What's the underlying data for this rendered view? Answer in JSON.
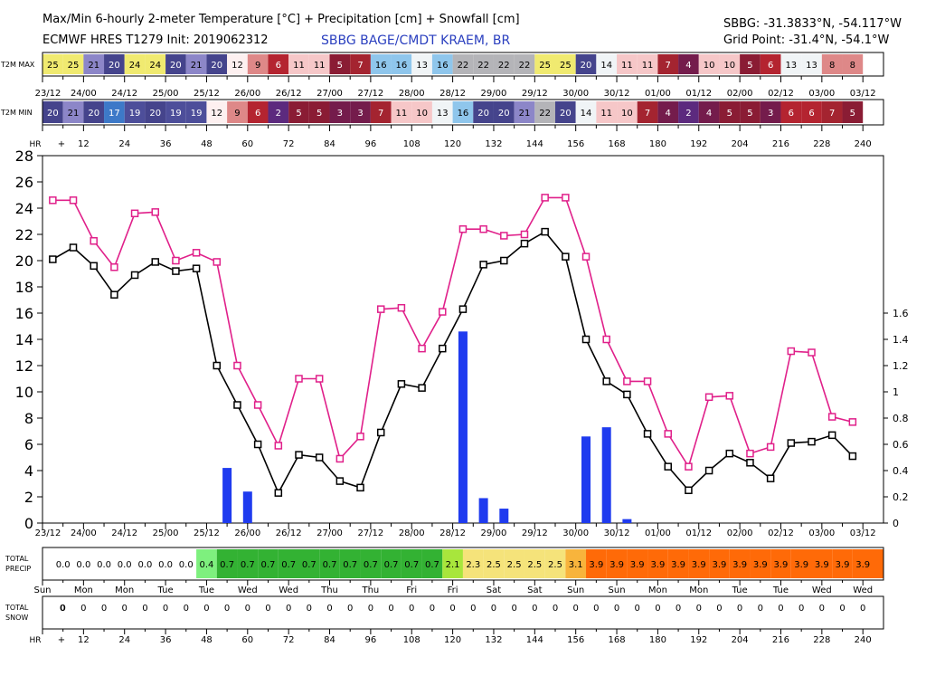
{
  "header": {
    "title": "Max/Min 6-hourly 2-meter Temperature [°C] + Precipitation [cm] + Snowfall [cm]",
    "model": "ECMWF HRES T1279 Init: 2019062312",
    "station": "SBBG BAGE/CMDT KRAEM, BR",
    "coords": "SBBG: -31.3833°N, -54.117°W",
    "grid_point": "Grid Point: -31.4°N, -54.1°W"
  },
  "row_labels": {
    "t2m_max": "T2M MAX",
    "t2m_min": "T2M MIN",
    "hr": "HR",
    "total_precip": [
      "TOTAL",
      "PRECIP"
    ],
    "total_snow": [
      "TOTAL",
      "SNOW"
    ]
  },
  "hours_row": [
    "+",
    "12",
    "24",
    "36",
    "48",
    "60",
    "72",
    "84",
    "96",
    "108",
    "120",
    "132",
    "144",
    "156",
    "168",
    "180",
    "192",
    "204",
    "216",
    "228",
    "240"
  ],
  "time_labels": [
    "23/12",
    "24/00",
    "24/12",
    "25/00",
    "25/12",
    "26/00",
    "26/12",
    "27/00",
    "27/12",
    "28/00",
    "28/12",
    "29/00",
    "29/12",
    "30/00",
    "30/12",
    "01/00",
    "01/12",
    "02/00",
    "02/12",
    "03/00",
    "03/12"
  ],
  "days_row": [
    "Sun",
    "Mon",
    "Mon",
    "Tue",
    "Tue",
    "Wed",
    "Wed",
    "Thu",
    "Thu",
    "Fri",
    "Fri",
    "Sat",
    "Sat",
    "Sun",
    "Sun",
    "Mon",
    "Mon",
    "Tue",
    "Tue",
    "Wed",
    "Wed"
  ],
  "t2m_max_values": [
    25,
    25,
    21,
    20,
    24,
    24,
    20,
    21,
    20,
    12,
    9,
    6,
    11,
    11,
    5,
    7,
    16,
    16,
    13,
    16,
    22,
    22,
    22,
    22,
    25,
    25,
    20,
    14,
    11,
    11,
    7,
    4,
    10,
    10,
    5,
    6,
    13,
    13,
    8,
    8
  ],
  "t2m_min_values": [
    20,
    21,
    20,
    17,
    19,
    20,
    19,
    19,
    12,
    9,
    6,
    2,
    5,
    5,
    3,
    3,
    7,
    11,
    10,
    13,
    16,
    20,
    20,
    21,
    22,
    20,
    14,
    11,
    10,
    7,
    4,
    2,
    4,
    5,
    5,
    3,
    6,
    6,
    7,
    5
  ],
  "total_precip_values": [
    "0.0",
    "0.0",
    "0.0",
    "0.0",
    "0.0",
    "0.0",
    "0.0",
    "0.0",
    "0.4",
    "0.7",
    "0.7",
    "0.7",
    "0.7",
    "0.7",
    "0.7",
    "0.7",
    "0.7",
    "0.7",
    "0.7",
    "0.7",
    "2.1",
    "2.3",
    "2.5",
    "2.5",
    "2.5",
    "2.5",
    "3.1",
    "3.9",
    "3.9",
    "3.9",
    "3.9",
    "3.9",
    "3.9",
    "3.9",
    "3.9",
    "3.9",
    "3.9",
    "3.9",
    "3.9",
    "3.9",
    "3.9"
  ],
  "total_snow_values": [
    "0",
    "0",
    "0",
    "0",
    "0",
    "0",
    "0",
    "0",
    "0",
    "0",
    "0",
    "0",
    "0",
    "0",
    "0",
    "0",
    "0",
    "0",
    "0",
    "0",
    "0",
    "0",
    "0",
    "0",
    "0",
    "0",
    "0",
    "0",
    "0",
    "0",
    "0",
    "0",
    "0",
    "0",
    "0",
    "0",
    "0",
    "0",
    "0",
    "0",
    "0"
  ],
  "colors": {
    "max_line": "#e0208a",
    "min_line": "#000000",
    "precip_bar": "#1f3bef"
  },
  "chart_data": {
    "type": "line",
    "y_left_range": [
      0,
      28
    ],
    "y_left_ticks": [
      "0",
      "2",
      "4",
      "6",
      "8",
      "10",
      "12",
      "14",
      "16",
      "18",
      "20",
      "22",
      "24",
      "26",
      "28"
    ],
    "y_right_range": [
      0,
      2.8
    ],
    "y_right_ticks": [
      "0",
      "0.2",
      "0.4",
      "0.6",
      "0.8",
      "1",
      "1.2",
      "1.4",
      "1.6"
    ],
    "x_hours": [
      3,
      9,
      15,
      21,
      27,
      33,
      39,
      45,
      51,
      57,
      63,
      69,
      75,
      81,
      87,
      93,
      99,
      105,
      111,
      117,
      123,
      129,
      135,
      141,
      147,
      153,
      159,
      165,
      171,
      177,
      183,
      189,
      195,
      201,
      207,
      213,
      219,
      225,
      231,
      237
    ],
    "series": [
      {
        "values": [
          24.6,
          24.6,
          21.5,
          19.5,
          23.6,
          23.7,
          20.0,
          20.6,
          19.9,
          12.0,
          9.0,
          5.9,
          11.0,
          11.0,
          4.9,
          6.6,
          16.3,
          16.4,
          13.3,
          16.1,
          22.4,
          22.4,
          21.9,
          22.0,
          24.8,
          24.8,
          20.3,
          14.0,
          10.8,
          10.8,
          6.8,
          4.3,
          9.6,
          9.7,
          5.3,
          5.8,
          13.1,
          13.0,
          8.1,
          7.7
        ]
      },
      {
        "values": [
          20.1,
          21.0,
          19.6,
          17.4,
          18.9,
          19.9,
          19.2,
          19.4,
          12.0,
          9.0,
          6.0,
          2.3,
          5.2,
          5.0,
          3.2,
          2.7,
          6.9,
          10.6,
          10.3,
          13.3,
          16.3,
          19.7,
          20.0,
          21.3,
          22.2,
          20.3,
          14.0,
          10.8,
          9.8,
          6.8,
          4.3,
          2.5,
          4.0,
          5.3,
          4.6,
          3.4,
          6.1,
          6.2,
          6.7,
          5.1
        ]
      },
      {
        "type": "bar",
        "x_hours": [
          54,
          60,
          123,
          129,
          135,
          159,
          165,
          171
        ],
        "values": [
          0.42,
          0.24,
          1.46,
          0.19,
          0.11,
          0.66,
          0.73,
          0.03
        ]
      }
    ]
  }
}
